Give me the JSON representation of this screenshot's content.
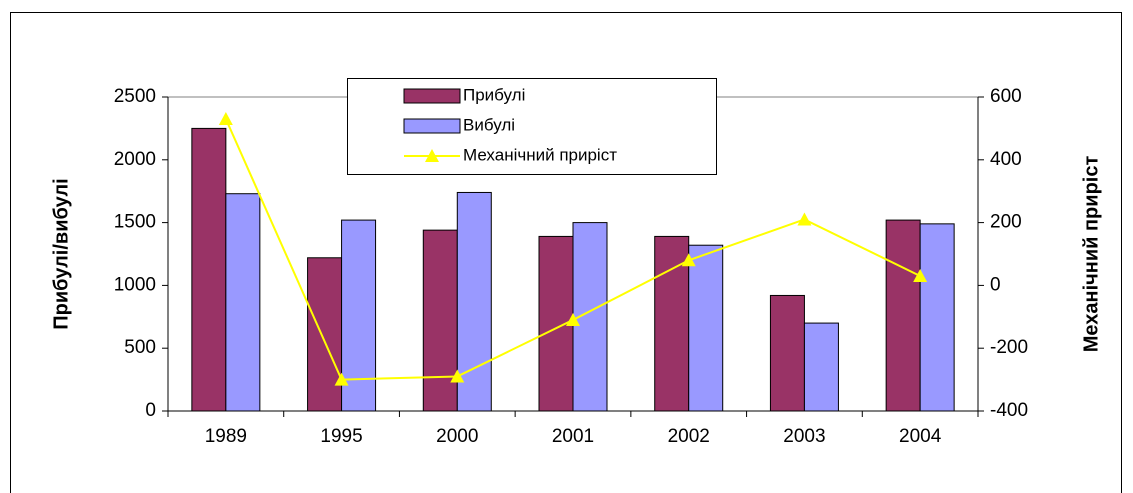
{
  "chart_data": {
    "type": "bar",
    "categories": [
      "1989",
      "1995",
      "2000",
      "2001",
      "2002",
      "2003",
      "2004"
    ],
    "series": [
      {
        "name": "Прибулі",
        "color": "#993366",
        "values": [
          2250,
          1220,
          1440,
          1390,
          1390,
          920,
          1520
        ]
      },
      {
        "name": "Вибулі",
        "color": "#9999ff",
        "values": [
          1730,
          1520,
          1740,
          1500,
          1320,
          700,
          1490
        ]
      },
      {
        "name": "Механічний приріст",
        "color": "#ffff00",
        "type": "line",
        "axis": "y2",
        "values": [
          530,
          -300,
          -290,
          -110,
          80,
          210,
          30
        ]
      }
    ],
    "ylabel": "Прибулі/вибулі",
    "y2label": "Механічний приріст",
    "ylim": [
      0,
      2500
    ],
    "yticks": [
      0,
      500,
      1000,
      1500,
      2000,
      2500
    ],
    "y2lim": [
      -400,
      600
    ],
    "y2ticks": [
      -400,
      -200,
      0,
      200,
      400,
      600
    ],
    "grid": false,
    "legend": "top"
  }
}
